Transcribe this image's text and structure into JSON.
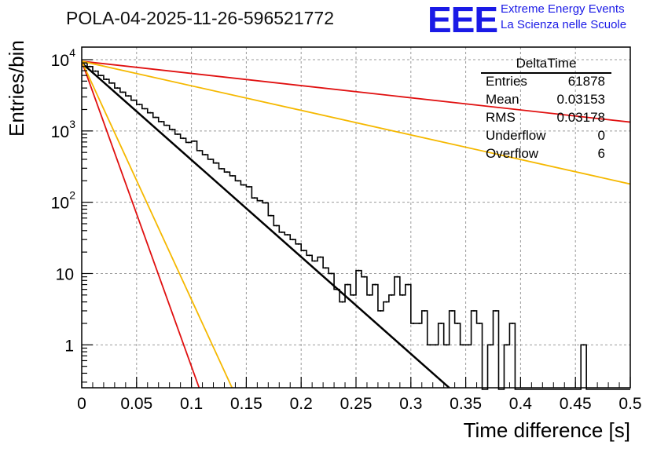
{
  "header": {
    "title": "POLA-04-2025-11-26-596521772",
    "logo_text": "EEE",
    "logo_line1": "Extreme Energy Events",
    "logo_line2": "La Scienza nelle Scuole"
  },
  "stats_box": {
    "name": "DeltaTime",
    "rows": [
      {
        "key": "Entries",
        "value": "61878"
      },
      {
        "key": "Mean",
        "value": "0.03153"
      },
      {
        "key": "RMS",
        "value": "0.03178"
      },
      {
        "key": "Underflow",
        "value": "0"
      },
      {
        "key": "Overflow",
        "value": "6"
      }
    ]
  },
  "chart_data": {
    "type": "line",
    "title": "POLA-04-2025-11-26-596521772",
    "xlabel": "Time difference [s]",
    "ylabel": "Entries/bin",
    "xlim": [
      0,
      0.5
    ],
    "ylim": [
      0.25,
      15000
    ],
    "yscale": "log",
    "grid": true,
    "xticks": [
      0,
      0.05,
      0.1,
      0.15,
      0.2,
      0.25,
      0.3,
      0.35,
      0.4,
      0.45,
      0.5
    ],
    "xtick_labels": [
      "0",
      "0.05",
      "0.1",
      "0.15",
      "0.2",
      "0.25",
      "0.3",
      "0.35",
      "0.4",
      "0.45",
      "0.5"
    ],
    "yticks": [
      1,
      10,
      100,
      1000,
      10000
    ],
    "ytick_labels": [
      {
        "base": "1",
        "exp": ""
      },
      {
        "base": "10",
        "exp": ""
      },
      {
        "base": "10",
        "exp": "2"
      },
      {
        "base": "10",
        "exp": "3"
      },
      {
        "base": "10",
        "exp": "4"
      }
    ],
    "histogram": {
      "name": "DeltaTime",
      "bin_width": 0.005,
      "bin_start": 0,
      "values": [
        9000,
        8000,
        6900,
        6000,
        5300,
        4700,
        4000,
        3500,
        3100,
        2700,
        2350,
        2050,
        1800,
        1550,
        1350,
        1200,
        1050,
        900,
        790,
        690,
        720,
        530,
        465,
        400,
        355,
        295,
        265,
        235,
        200,
        175,
        165,
        115,
        105,
        98,
        65,
        47,
        38,
        35,
        30,
        26,
        21,
        18,
        15,
        17,
        12,
        10,
        6,
        4,
        7,
        5,
        11,
        9,
        5,
        7,
        3,
        4,
        5,
        9,
        5,
        7,
        2,
        2,
        3,
        1,
        1,
        2,
        1,
        3,
        2,
        1,
        1,
        3,
        2,
        0,
        1,
        3,
        0,
        1,
        2,
        0,
        0,
        0,
        0,
        0,
        0,
        0,
        0,
        0,
        0,
        0,
        0,
        1,
        0,
        0,
        0,
        0,
        0,
        0,
        0,
        0
      ]
    },
    "series": [
      {
        "name": "fit",
        "color": "#000000",
        "style": "solid",
        "width": 2.5,
        "x": [
          0,
          0.335
        ],
        "y": [
          9000,
          0.25
        ]
      },
      {
        "name": "bound-red-slow",
        "color": "#e01010",
        "style": "solid",
        "width": 1.8,
        "x": [
          0,
          0.5
        ],
        "y": [
          9500,
          1330
        ]
      },
      {
        "name": "bound-orange-slow",
        "color": "#f5b800",
        "style": "solid",
        "width": 1.8,
        "x": [
          0,
          0.5
        ],
        "y": [
          9500,
          180
        ]
      },
      {
        "name": "bound-red-fast",
        "color": "#e01010",
        "style": "solid",
        "width": 1.8,
        "x": [
          0,
          0.107
        ],
        "y": [
          9500,
          0.25
        ]
      },
      {
        "name": "bound-orange-fast",
        "color": "#f5b800",
        "style": "solid",
        "width": 1.8,
        "x": [
          0,
          0.137
        ],
        "y": [
          9500,
          0.25
        ]
      }
    ]
  }
}
